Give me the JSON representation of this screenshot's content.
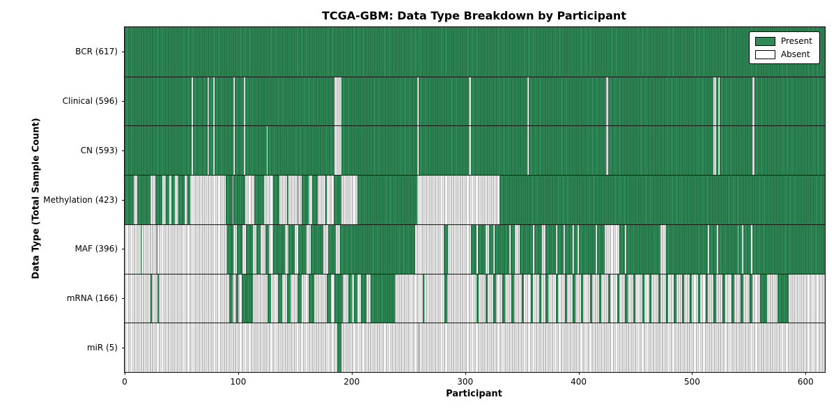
{
  "figure": {
    "title": "TCGA-GBM: Data Type Breakdown by Participant",
    "xlabel": "Participant",
    "ylabel": "Data Type (Total Sample Count)"
  },
  "legend": {
    "present_label": "Present",
    "absent_label": "Absent",
    "position": "upper right"
  },
  "colors": {
    "present": "#2e8b57",
    "present_edge": "#1d5c39",
    "absent": "#f6f6f6",
    "absent_pure": "#ffffff",
    "absent_edge": "#8f8f8f",
    "axis": "#000000"
  },
  "chart_data": {
    "type": "heatmap",
    "title": "TCGA-GBM: Data Type Breakdown by Participant",
    "xlabel": "Participant",
    "ylabel": "Data Type (Total Sample Count)",
    "x_min": 0,
    "x_max": 617,
    "x_ticks": [
      0,
      100,
      200,
      300,
      400,
      500,
      600
    ],
    "grid": false,
    "legend_position": "upper right",
    "cell_states": [
      "Present",
      "Absent"
    ],
    "rows": [
      {
        "key": "bcr",
        "label": "BCR",
        "count": 617,
        "display": "BCR (617)",
        "present_ranges": [
          [
            0,
            617
          ]
        ]
      },
      {
        "key": "clinical",
        "label": "Clinical",
        "count": 596,
        "display": "Clinical (596)",
        "present_ranges": [
          [
            0,
            59
          ],
          [
            60,
            73
          ],
          [
            74,
            78
          ],
          [
            79,
            96
          ],
          [
            97,
            105
          ],
          [
            106,
            185
          ],
          [
            191,
            258
          ],
          [
            259,
            303
          ],
          [
            305,
            355
          ],
          [
            356,
            424
          ],
          [
            426,
            519
          ],
          [
            521,
            523
          ],
          [
            524,
            553
          ],
          [
            555,
            617
          ]
        ]
      },
      {
        "key": "cn",
        "label": "CN",
        "count": 593,
        "display": "CN (593)",
        "present_ranges": [
          [
            0,
            59
          ],
          [
            60,
            73
          ],
          [
            74,
            78
          ],
          [
            79,
            96
          ],
          [
            97,
            105
          ],
          [
            106,
            125
          ],
          [
            126,
            185
          ],
          [
            191,
            258
          ],
          [
            259,
            303
          ],
          [
            305,
            355
          ],
          [
            356,
            424
          ],
          [
            426,
            519
          ],
          [
            521,
            523
          ],
          [
            524,
            553
          ],
          [
            555,
            617
          ]
        ]
      },
      {
        "key": "methylation",
        "label": "Methylation",
        "count": 423,
        "display": "Methylation (423)",
        "present_ranges": [
          [
            0,
            8
          ],
          [
            11,
            23
          ],
          [
            27,
            33
          ],
          [
            36,
            39
          ],
          [
            41,
            44
          ],
          [
            47,
            53
          ],
          [
            55,
            58
          ],
          [
            89,
            95
          ],
          [
            96,
            106
          ],
          [
            114,
            123
          ],
          [
            131,
            136
          ],
          [
            143,
            144
          ],
          [
            152,
            153
          ],
          [
            156,
            162
          ],
          [
            165,
            170
          ],
          [
            177,
            178
          ],
          [
            184,
            191
          ],
          [
            205,
            258
          ],
          [
            330,
            617
          ]
        ]
      },
      {
        "key": "maf",
        "label": "MAF",
        "count": 396,
        "display": "MAF (396)",
        "present_ranges": [
          [
            14,
            15
          ],
          [
            28,
            29
          ],
          [
            90,
            96
          ],
          [
            99,
            104
          ],
          [
            107,
            113
          ],
          [
            116,
            120
          ],
          [
            124,
            127
          ],
          [
            131,
            141
          ],
          [
            144,
            150
          ],
          [
            153,
            160
          ],
          [
            164,
            175
          ],
          [
            179,
            186
          ],
          [
            190,
            256
          ],
          [
            281,
            285
          ],
          [
            305,
            310
          ],
          [
            311,
            318
          ],
          [
            321,
            325
          ],
          [
            326,
            339
          ],
          [
            340,
            344
          ],
          [
            348,
            360
          ],
          [
            361,
            368
          ],
          [
            371,
            380
          ],
          [
            381,
            387
          ],
          [
            388,
            395
          ],
          [
            396,
            399
          ],
          [
            400,
            415
          ],
          [
            416,
            423
          ],
          [
            436,
            441
          ],
          [
            442,
            472
          ],
          [
            477,
            514
          ],
          [
            515,
            522
          ],
          [
            523,
            540
          ],
          [
            541,
            544
          ],
          [
            545,
            552
          ],
          [
            553,
            617
          ]
        ]
      },
      {
        "key": "mrna",
        "label": "mRNA",
        "count": 166,
        "display": "mRNA (166)",
        "present_ranges": [
          [
            23,
            24
          ],
          [
            29,
            30
          ],
          [
            92,
            95
          ],
          [
            98,
            100
          ],
          [
            103,
            113
          ],
          [
            126,
            129
          ],
          [
            135,
            139
          ],
          [
            143,
            146
          ],
          [
            152,
            156
          ],
          [
            162,
            167
          ],
          [
            178,
            182
          ],
          [
            185,
            192
          ],
          [
            197,
            200
          ],
          [
            202,
            205
          ],
          [
            208,
            213
          ],
          [
            217,
            238
          ],
          [
            263,
            264
          ],
          [
            282,
            284
          ],
          [
            310,
            312
          ],
          [
            318,
            320
          ],
          [
            325,
            327
          ],
          [
            333,
            335
          ],
          [
            341,
            343
          ],
          [
            350,
            352
          ],
          [
            358,
            360
          ],
          [
            365,
            367
          ],
          [
            371,
            373
          ],
          [
            380,
            382
          ],
          [
            388,
            390
          ],
          [
            395,
            397
          ],
          [
            402,
            404
          ],
          [
            410,
            412
          ],
          [
            418,
            420
          ],
          [
            426,
            428
          ],
          [
            434,
            436
          ],
          [
            441,
            443
          ],
          [
            448,
            450
          ],
          [
            456,
            458
          ],
          [
            462,
            464
          ],
          [
            470,
            472
          ],
          [
            477,
            479
          ],
          [
            484,
            486
          ],
          [
            491,
            493
          ],
          [
            498,
            500
          ],
          [
            505,
            507
          ],
          [
            512,
            514
          ],
          [
            519,
            521
          ],
          [
            527,
            529
          ],
          [
            535,
            537
          ],
          [
            543,
            545
          ],
          [
            551,
            553
          ],
          [
            560,
            566
          ],
          [
            575,
            585
          ]
        ]
      },
      {
        "key": "mir",
        "label": "miR",
        "count": 5,
        "display": "miR (5)",
        "present_ranges": [
          [
            187,
            191
          ],
          [
            259,
            260
          ]
        ]
      }
    ]
  }
}
